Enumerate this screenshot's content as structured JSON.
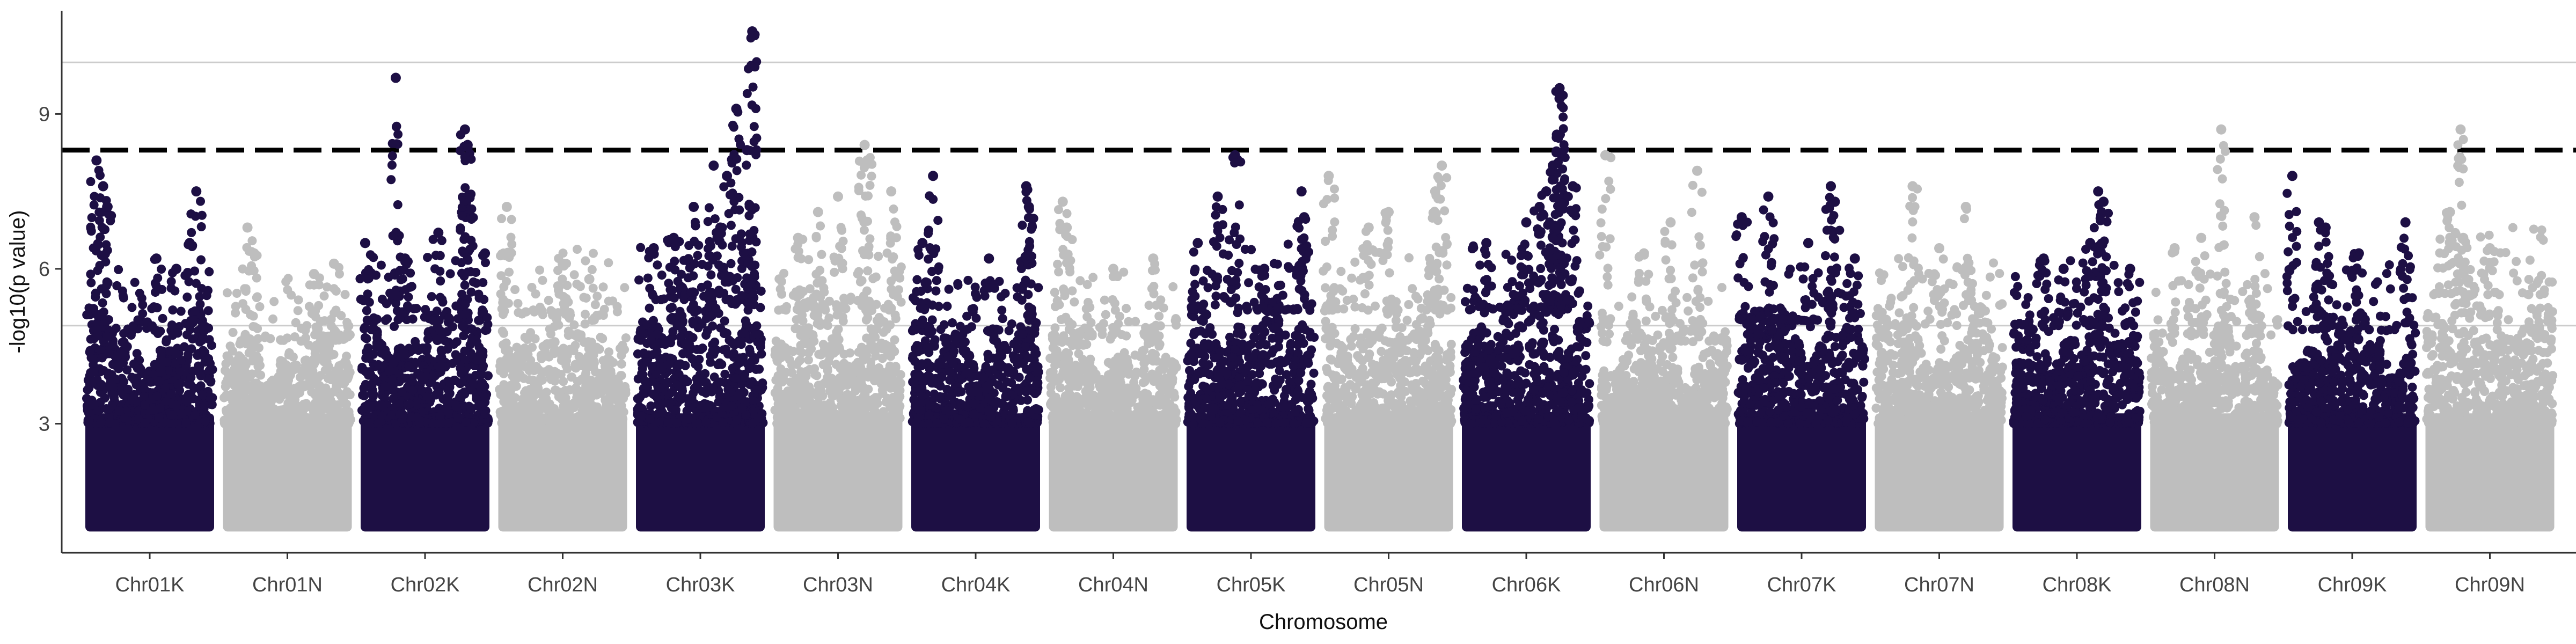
{
  "chart_data": {
    "type": "scatter",
    "subtype": "manhattan",
    "title": "",
    "xlabel": "Chromosome",
    "ylabel": "-log10(p value)",
    "ylim": [
      0.5,
      11
    ],
    "yticks": [
      3,
      6,
      9
    ],
    "grid": false,
    "legend": "none",
    "reference_lines": [
      {
        "y": 10.0,
        "style": "solid",
        "color": "#cccccc"
      },
      {
        "y": 4.9,
        "style": "solid",
        "color": "#cccccc"
      },
      {
        "y": 8.3,
        "style": "dashed",
        "color": "#000000"
      }
    ],
    "colors": {
      "odd": "#1d0f44",
      "even": "#bebebe"
    },
    "categories": [
      "Chr01K",
      "Chr01N",
      "Chr02K",
      "Chr02N",
      "Chr03K",
      "Chr03N",
      "Chr04K",
      "Chr04N",
      "Chr05K",
      "Chr05N",
      "Chr06K",
      "Chr06N",
      "Chr07K",
      "Chr07N",
      "Chr08K",
      "Chr08N",
      "Chr09K",
      "Chr09N"
    ],
    "chromosomes": [
      {
        "name": "Chr01K",
        "dense_top": 4.6,
        "peaks": [
          [
            0.1,
            8.1
          ],
          [
            0.15,
            7.6
          ],
          [
            0.18,
            7.2
          ],
          [
            0.85,
            7.5
          ],
          [
            0.8,
            6.5
          ],
          [
            0.55,
            6.2
          ],
          [
            0.7,
            6.0
          ]
        ]
      },
      {
        "name": "Chr01N",
        "dense_top": 4.4,
        "peaks": [
          [
            0.2,
            6.8
          ],
          [
            0.25,
            6.3
          ],
          [
            0.7,
            5.9
          ],
          [
            0.85,
            6.1
          ]
        ]
      },
      {
        "name": "Chr02K",
        "dense_top": 4.8,
        "peaks": [
          [
            0.28,
            9.7
          ],
          [
            0.8,
            8.7
          ],
          [
            0.82,
            8.4
          ],
          [
            0.82,
            7.4
          ],
          [
            0.05,
            6.5
          ],
          [
            0.6,
            6.7
          ],
          [
            0.35,
            6.2
          ],
          [
            0.95,
            6.3
          ]
        ]
      },
      {
        "name": "Chr02N",
        "dense_top": 4.9,
        "peaks": [
          [
            0.08,
            7.2
          ],
          [
            0.5,
            6.1
          ],
          [
            0.7,
            5.8
          ]
        ]
      },
      {
        "name": "Chr03K",
        "dense_top": 5.2,
        "peaks": [
          [
            0.89,
            10.6
          ],
          [
            0.77,
            9.1
          ],
          [
            0.85,
            8.3
          ],
          [
            0.6,
            8.0
          ],
          [
            0.7,
            7.8
          ],
          [
            0.45,
            7.2
          ],
          [
            0.3,
            6.6
          ],
          [
            0.15,
            6.4
          ],
          [
            0.65,
            6.8
          ]
        ]
      },
      {
        "name": "Chr03N",
        "dense_top": 5.0,
        "peaks": [
          [
            0.7,
            8.4
          ],
          [
            0.72,
            8.1
          ],
          [
            0.5,
            7.4
          ],
          [
            0.35,
            7.1
          ],
          [
            0.9,
            7.5
          ],
          [
            0.2,
            6.6
          ]
        ]
      },
      {
        "name": "Chr04K",
        "dense_top": 4.6,
        "peaks": [
          [
            0.18,
            7.8
          ],
          [
            0.88,
            7.6
          ],
          [
            0.9,
            7.2
          ],
          [
            0.1,
            6.5
          ],
          [
            0.6,
            6.2
          ]
        ]
      },
      {
        "name": "Chr04N",
        "dense_top": 4.5,
        "peaks": [
          [
            0.12,
            7.3
          ],
          [
            0.15,
            6.8
          ],
          [
            0.5,
            6.0
          ],
          [
            0.8,
            6.2
          ]
        ]
      },
      {
        "name": "Chr05K",
        "dense_top": 5.0,
        "peaks": [
          [
            0.38,
            8.2
          ],
          [
            0.25,
            7.4
          ],
          [
            0.88,
            7.5
          ],
          [
            0.9,
            7.0
          ],
          [
            0.1,
            6.5
          ],
          [
            0.6,
            6.0
          ]
        ]
      },
      {
        "name": "Chr05N",
        "dense_top": 5.0,
        "peaks": [
          [
            0.05,
            7.8
          ],
          [
            0.9,
            8.0
          ],
          [
            0.85,
            7.5
          ],
          [
            0.5,
            7.1
          ],
          [
            0.35,
            6.8
          ]
        ]
      },
      {
        "name": "Chr06K",
        "dense_top": 5.0,
        "peaks": [
          [
            0.75,
            9.5
          ],
          [
            0.75,
            9.3
          ],
          [
            0.73,
            8.6
          ],
          [
            0.7,
            8.0
          ],
          [
            0.65,
            7.5
          ],
          [
            0.2,
            6.5
          ],
          [
            0.85,
            7.6
          ],
          [
            0.5,
            6.9
          ],
          [
            0.6,
            7.2
          ]
        ]
      },
      {
        "name": "Chr06N",
        "dense_top": 4.4,
        "peaks": [
          [
            0.06,
            8.2
          ],
          [
            0.75,
            7.9
          ],
          [
            0.55,
            6.9
          ],
          [
            0.35,
            6.3
          ]
        ]
      },
      {
        "name": "Chr07K",
        "dense_top": 4.8,
        "peaks": [
          [
            0.05,
            7.0
          ],
          [
            0.25,
            7.4
          ],
          [
            0.72,
            7.6
          ],
          [
            0.75,
            7.3
          ],
          [
            0.55,
            6.5
          ],
          [
            0.9,
            6.2
          ]
        ]
      },
      {
        "name": "Chr07N",
        "dense_top": 4.7,
        "peaks": [
          [
            0.3,
            7.6
          ],
          [
            0.7,
            7.2
          ],
          [
            0.5,
            6.4
          ]
        ]
      },
      {
        "name": "Chr08K",
        "dense_top": 4.7,
        "peaks": [
          [
            0.66,
            7.5
          ],
          [
            0.7,
            7.3
          ],
          [
            0.6,
            6.5
          ],
          [
            0.25,
            6.2
          ],
          [
            0.9,
            6.0
          ],
          [
            0.4,
            6.0
          ]
        ]
      },
      {
        "name": "Chr08N",
        "dense_top": 4.5,
        "peaks": [
          [
            0.55,
            8.7
          ],
          [
            0.8,
            7.0
          ],
          [
            0.4,
            6.6
          ],
          [
            0.2,
            6.4
          ]
        ]
      },
      {
        "name": "Chr09K",
        "dense_top": 4.6,
        "peaks": [
          [
            0.05,
            7.8
          ],
          [
            0.25,
            6.9
          ],
          [
            0.3,
            6.8
          ],
          [
            0.9,
            6.9
          ],
          [
            0.55,
            6.3
          ]
        ]
      },
      {
        "name": "Chr09N",
        "dense_top": 5.3,
        "peaks": [
          [
            0.28,
            8.7
          ],
          [
            0.2,
            7.1
          ],
          [
            0.5,
            6.4
          ],
          [
            0.3,
            6.6
          ]
        ]
      }
    ]
  }
}
